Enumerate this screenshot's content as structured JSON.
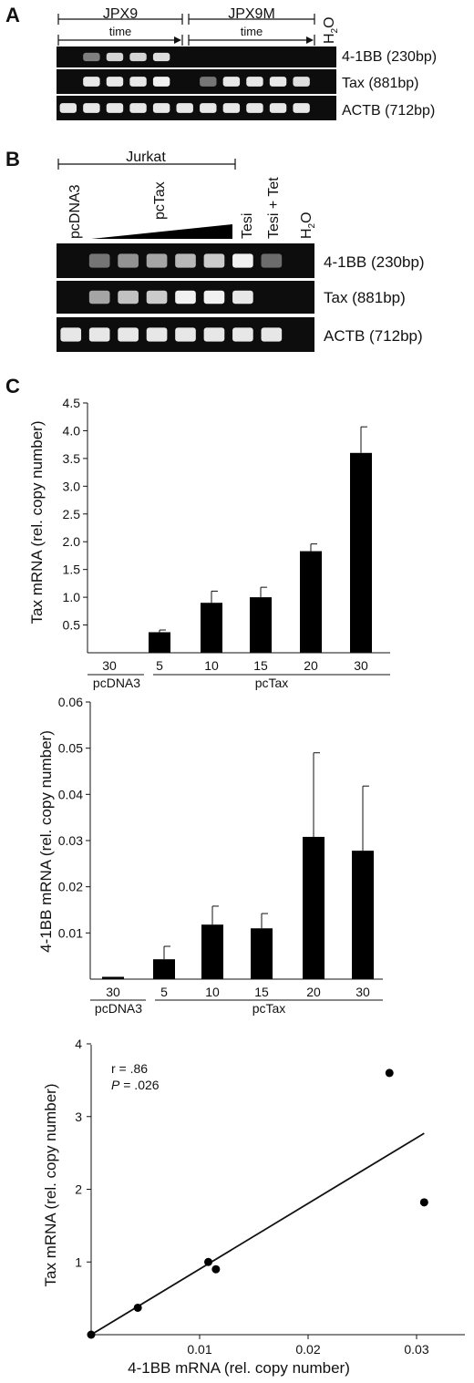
{
  "panel_a": {
    "letter": "A",
    "groups": [
      {
        "label": "JPX9"
      },
      {
        "label": "JPX9M"
      }
    ],
    "time_label": "time",
    "water_label": "H",
    "water_sub": "2",
    "water_tail": "O",
    "bands": [
      {
        "label": "4-1BB (230bp)",
        "intensities": [
          0,
          0.35,
          0.8,
          0.8,
          0.85,
          0,
          0,
          0,
          0,
          0,
          0,
          0
        ]
      },
      {
        "label": "Tax (881bp)",
        "intensities": [
          0,
          0.9,
          0.9,
          0.9,
          0.95,
          0,
          0.3,
          0.9,
          0.9,
          0.9,
          0.85,
          0
        ]
      },
      {
        "label": "ACTB (712bp)",
        "intensities": [
          0.9,
          0.9,
          0.9,
          0.9,
          0.9,
          0.9,
          0.9,
          0.9,
          0.9,
          0.9,
          0.9,
          0
        ]
      }
    ]
  },
  "panel_b": {
    "letter": "B",
    "group_label": "Jurkat",
    "lanes": [
      "pcDNA3",
      "pcTax",
      "Tesi",
      "Tesi + Tet",
      "H",
      "2",
      "O"
    ],
    "bands": [
      {
        "label": "4-1BB (230bp)",
        "intensities": [
          0,
          0.3,
          0.45,
          0.55,
          0.65,
          0.75,
          0.95,
          0.25,
          0
        ]
      },
      {
        "label": "Tax (881bp)",
        "intensities": [
          0,
          0.55,
          0.7,
          0.75,
          0.95,
          0.95,
          0.9,
          0,
          0
        ]
      },
      {
        "label": "ACTB (712bp)",
        "intensities": [
          0.9,
          0.9,
          0.9,
          0.9,
          0.9,
          0.9,
          0.9,
          0.9,
          0
        ]
      }
    ]
  },
  "panel_c": {
    "letter": "C"
  },
  "chart_data": [
    {
      "type": "bar",
      "ylabel": "Tax mRNA (rel. copy number)",
      "categories": [
        "30",
        "5",
        "10",
        "15",
        "20",
        "30"
      ],
      "groups": [
        "pcDNA3",
        "pcTax"
      ],
      "values": [
        0,
        0.37,
        0.9,
        1.0,
        1.83,
        3.6
      ],
      "errors": [
        0,
        0.04,
        0.21,
        0.18,
        0.13,
        0.47
      ],
      "yticks": [
        "0.5",
        "1.0",
        "1.5",
        "2.0",
        "2.5",
        "3.0",
        "3.5",
        "4.0",
        "4.5"
      ],
      "ylim": [
        0,
        4.5
      ]
    },
    {
      "type": "bar",
      "ylabel": "4-1BB mRNA (rel. copy number)",
      "categories": [
        "30",
        "5",
        "10",
        "15",
        "20",
        "30"
      ],
      "groups": [
        "pcDNA3",
        "pcTax"
      ],
      "values": [
        0.0005,
        0.0043,
        0.0118,
        0.011,
        0.0308,
        0.0278
      ],
      "errors": [
        0,
        0.0028,
        0.004,
        0.0032,
        0.0182,
        0.014
      ],
      "yticks": [
        "0.01",
        "0.02",
        "0.03",
        "0.04",
        "0.05",
        "0.06"
      ],
      "ylim": [
        0,
        0.06
      ]
    },
    {
      "type": "scatter",
      "xlabel": "4-1BB mRNA (rel. copy number)",
      "ylabel": "Tax mRNA (rel. copy number)",
      "points": [
        [
          0.0,
          0.0
        ],
        [
          0.0043,
          0.37
        ],
        [
          0.0108,
          1.0
        ],
        [
          0.0115,
          0.9
        ],
        [
          0.0275,
          3.6
        ],
        [
          0.0307,
          1.82
        ]
      ],
      "fit_line": [
        [
          0.0,
          0.0
        ],
        [
          0.0307,
          2.77
        ]
      ],
      "xticks": [
        "0.01",
        "0.02",
        "0.03"
      ],
      "yticks": [
        "1",
        "2",
        "3",
        "4"
      ],
      "xlim": [
        0,
        0.035
      ],
      "ylim": [
        0,
        4
      ],
      "stats": {
        "r": "r = .86",
        "p_label": "P",
        "p_value": " = .026"
      }
    }
  ]
}
